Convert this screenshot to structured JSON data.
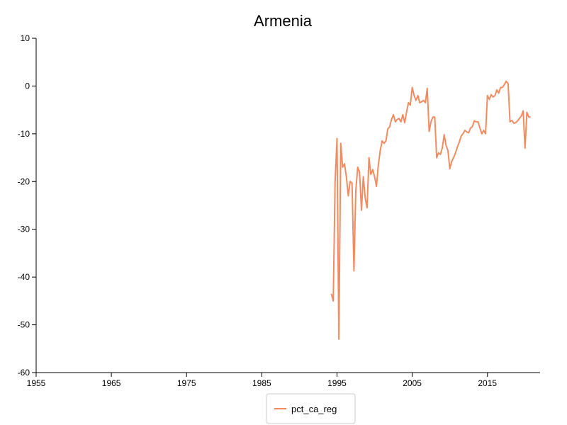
{
  "chart_data": {
    "type": "line",
    "title": "Armenia",
    "xlabel": "",
    "ylabel": "",
    "xlim": [
      1955,
      2022
    ],
    "ylim": [
      -60,
      10
    ],
    "xticks": [
      1955,
      1965,
      1975,
      1985,
      1995,
      2005,
      2015
    ],
    "yticks": [
      10,
      0,
      -10,
      -20,
      -30,
      -40,
      -50,
      -60
    ],
    "grid": false,
    "legend": "bottom-center",
    "series": [
      {
        "name": "pct_ca_reg",
        "color": "#f28c60",
        "points": [
          [
            1994.25,
            -43.5
          ],
          [
            1994.5,
            -45
          ],
          [
            1994.75,
            -20
          ],
          [
            1995.0,
            -11
          ],
          [
            1995.25,
            -53
          ],
          [
            1995.5,
            -12
          ],
          [
            1995.75,
            -17
          ],
          [
            1996.0,
            -16.3
          ],
          [
            1996.25,
            -19
          ],
          [
            1996.5,
            -23
          ],
          [
            1996.75,
            -20
          ],
          [
            1997.0,
            -20.3
          ],
          [
            1997.25,
            -38.7
          ],
          [
            1997.5,
            -22
          ],
          [
            1997.75,
            -17
          ],
          [
            1998.0,
            -18
          ],
          [
            1998.25,
            -26
          ],
          [
            1998.5,
            -19
          ],
          [
            1998.75,
            -23.5
          ],
          [
            1999.0,
            -25.5
          ],
          [
            1999.25,
            -15
          ],
          [
            1999.5,
            -18.5
          ],
          [
            1999.75,
            -17.5
          ],
          [
            2000.0,
            -19
          ],
          [
            2000.25,
            -21
          ],
          [
            2000.5,
            -16.5
          ],
          [
            2000.75,
            -13.5
          ],
          [
            2001.0,
            -11.5
          ],
          [
            2001.25,
            -12
          ],
          [
            2001.5,
            -11.5
          ],
          [
            2001.75,
            -9
          ],
          [
            2002.0,
            -8.5
          ],
          [
            2002.25,
            -7
          ],
          [
            2002.5,
            -6
          ],
          [
            2002.75,
            -7.5
          ],
          [
            2003.0,
            -7
          ],
          [
            2003.25,
            -6.8
          ],
          [
            2003.5,
            -7.5
          ],
          [
            2003.75,
            -6
          ],
          [
            2004.0,
            -7.7
          ],
          [
            2004.25,
            -5.5
          ],
          [
            2004.5,
            -3.5
          ],
          [
            2004.75,
            -4
          ],
          [
            2005.0,
            -0.3
          ],
          [
            2005.25,
            -2
          ],
          [
            2005.5,
            -3
          ],
          [
            2005.75,
            -2
          ],
          [
            2006.0,
            -3.5
          ],
          [
            2006.25,
            -3.3
          ],
          [
            2006.5,
            -3
          ],
          [
            2006.75,
            -3.5
          ],
          [
            2007.0,
            -0.5
          ],
          [
            2007.25,
            -9.5
          ],
          [
            2007.5,
            -7.5
          ],
          [
            2007.75,
            -6.5
          ],
          [
            2008.0,
            -6.5
          ],
          [
            2008.25,
            -15
          ],
          [
            2008.5,
            -14
          ],
          [
            2008.75,
            -14.3
          ],
          [
            2009.0,
            -13
          ],
          [
            2009.25,
            -10.2
          ],
          [
            2009.5,
            -12.5
          ],
          [
            2009.75,
            -13.5
          ],
          [
            2010.0,
            -17.3
          ],
          [
            2010.25,
            -15.8
          ],
          [
            2010.5,
            -15
          ],
          [
            2010.75,
            -14
          ],
          [
            2011.0,
            -12.8
          ],
          [
            2011.25,
            -11.8
          ],
          [
            2011.5,
            -10.5
          ],
          [
            2011.75,
            -10
          ],
          [
            2012.0,
            -9.3
          ],
          [
            2012.25,
            -9.6
          ],
          [
            2012.5,
            -9.8
          ],
          [
            2012.75,
            -8.8
          ],
          [
            2013.0,
            -8.5
          ],
          [
            2013.25,
            -7.3
          ],
          [
            2013.5,
            -7.5
          ],
          [
            2013.75,
            -7.5
          ],
          [
            2014.0,
            -8.8
          ],
          [
            2014.25,
            -10
          ],
          [
            2014.5,
            -9.3
          ],
          [
            2014.75,
            -10
          ],
          [
            2015.0,
            -2
          ],
          [
            2015.25,
            -2.8
          ],
          [
            2015.5,
            -1.8
          ],
          [
            2015.75,
            -2.3
          ],
          [
            2016.0,
            -2
          ],
          [
            2016.25,
            -0.8
          ],
          [
            2016.5,
            -1.5
          ],
          [
            2016.75,
            -0.3
          ],
          [
            2017.0,
            -0.3
          ],
          [
            2017.25,
            0.3
          ],
          [
            2017.5,
            1
          ],
          [
            2017.75,
            0.5
          ],
          [
            2018.0,
            -7.5
          ],
          [
            2018.25,
            -7.2
          ],
          [
            2018.5,
            -7.8
          ],
          [
            2018.75,
            -7.7
          ],
          [
            2019.0,
            -7.3
          ],
          [
            2019.25,
            -6.8
          ],
          [
            2019.5,
            -6.3
          ],
          [
            2019.75,
            -5.2
          ],
          [
            2020.0,
            -13
          ],
          [
            2020.25,
            -5.5
          ],
          [
            2020.5,
            -6.5
          ],
          [
            2020.75,
            -6.5
          ]
        ]
      }
    ]
  }
}
